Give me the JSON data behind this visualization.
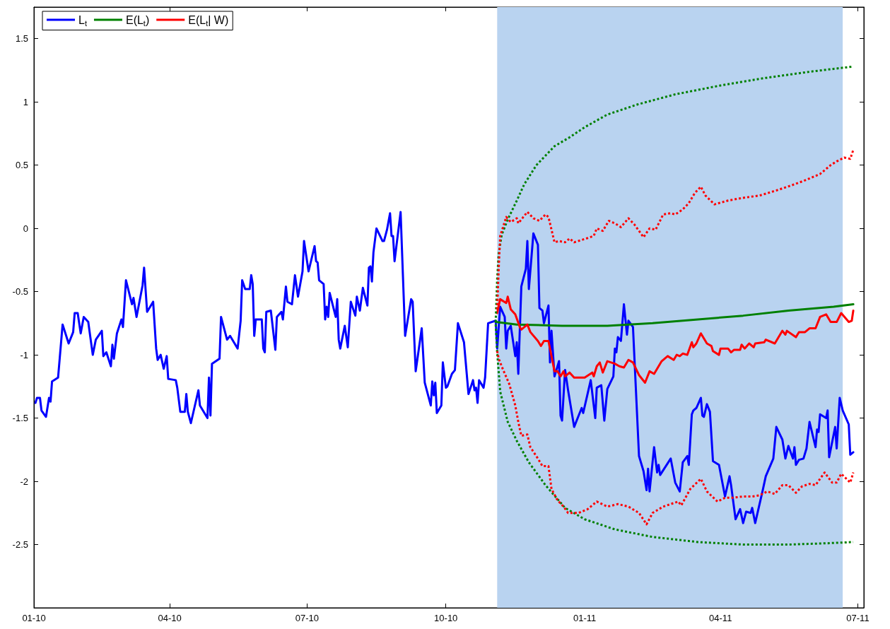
{
  "chart_data": {
    "type": "line",
    "xlim": [
      "2010-01-01",
      "2011-07-05"
    ],
    "ylim": [
      -3,
      1.75
    ],
    "xticks": [
      {
        "value": "2010-01-01",
        "label": "01-10"
      },
      {
        "value": "2010-04-01",
        "label": "04-10"
      },
      {
        "value": "2010-07-01",
        "label": "07-10"
      },
      {
        "value": "2010-10-01",
        "label": "10-10"
      },
      {
        "value": "2011-01-01",
        "label": "01-11"
      },
      {
        "value": "2011-04-01",
        "label": "04-11"
      },
      {
        "value": "2011-07-01",
        "label": "07-11"
      }
    ],
    "yticks": [
      -2.5,
      -2,
      -1.5,
      -1,
      -0.5,
      0,
      0.5,
      1,
      1.5
    ],
    "grid": false,
    "legend": "top left",
    "marker": "none",
    "line_style": "solid",
    "bands": [
      {
        "axis": "x",
        "from": "2010-11-04",
        "to": "2011-06-21",
        "color": "#b9d3f0"
      }
    ],
    "series": [
      {
        "name": "L$_{t}$",
        "color": "#0000ff",
        "x": [
          "2010-01-02",
          "2010-01-03",
          "2010-01-05",
          "2010-01-06",
          "2010-01-09",
          "2010-01-11",
          "2010-01-12",
          "2010-01-13",
          "2010-01-17",
          "2010-01-20",
          "2010-01-24",
          "2010-01-27",
          "2010-01-28",
          "2010-01-30",
          "2010-02-01",
          "2010-02-03",
          "2010-02-06",
          "2010-02-09",
          "2010-02-11",
          "2010-02-15",
          "2010-02-16",
          "2010-02-18",
          "2010-02-21",
          "2010-02-22",
          "2010-02-23",
          "2010-02-25",
          "2010-02-28",
          "2010-03-01",
          "2010-03-03",
          "2010-03-07",
          "2010-03-08",
          "2010-03-10",
          "2010-03-14",
          "2010-03-15",
          "2010-03-17",
          "2010-03-21",
          "2010-03-23",
          "2010-03-24",
          "2010-03-26",
          "2010-03-28",
          "2010-03-30",
          "2010-03-31",
          "2010-04-05",
          "2010-04-06",
          "2010-04-08",
          "2010-04-11",
          "2010-04-12",
          "2010-04-13",
          "2010-04-15",
          "2010-04-20",
          "2010-04-21",
          "2010-04-26",
          "2010-04-27",
          "2010-04-28",
          "2010-04-29",
          "2010-05-04",
          "2010-05-05",
          "2010-05-09",
          "2010-05-11",
          "2010-05-16",
          "2010-05-18",
          "2010-05-19",
          "2010-05-21",
          "2010-05-24",
          "2010-05-25",
          "2010-05-26",
          "2010-05-27",
          "2010-05-28",
          "2010-06-01",
          "2010-06-02",
          "2010-06-03",
          "2010-06-04",
          "2010-06-07",
          "2010-06-10",
          "2010-06-11",
          "2010-06-14",
          "2010-06-15",
          "2010-06-17",
          "2010-06-18",
          "2010-06-21",
          "2010-06-23",
          "2010-06-25",
          "2010-06-28",
          "2010-06-29",
          "2010-07-02",
          "2010-07-06",
          "2010-07-07",
          "2010-07-08",
          "2010-07-09",
          "2010-07-12",
          "2010-07-13",
          "2010-07-14",
          "2010-07-15",
          "2010-07-16",
          "2010-07-20",
          "2010-07-21",
          "2010-07-22",
          "2010-07-23",
          "2010-07-26",
          "2010-07-28",
          "2010-07-30",
          "2010-08-02",
          "2010-08-03",
          "2010-08-05",
          "2010-08-07",
          "2010-08-10",
          "2010-08-11",
          "2010-08-12",
          "2010-08-13",
          "2010-08-14",
          "2010-08-16",
          "2010-08-20",
          "2010-08-21",
          "2010-08-23",
          "2010-08-25",
          "2010-08-26",
          "2010-08-27",
          "2010-08-28",
          "2010-09-01",
          "2010-09-04",
          "2010-09-08",
          "2010-09-09",
          "2010-09-11",
          "2010-09-15",
          "2010-09-17",
          "2010-09-21",
          "2010-09-22",
          "2010-09-23",
          "2010-09-24",
          "2010-09-25",
          "2010-09-28",
          "2010-09-29",
          "2010-10-01",
          "2010-10-02",
          "2010-10-05",
          "2010-10-07",
          "2010-10-09",
          "2010-10-13",
          "2010-10-16",
          "2010-10-19",
          "2010-10-20",
          "2010-10-21",
          "2010-10-22",
          "2010-10-23",
          "2010-10-26",
          "2010-10-27",
          "2010-10-29",
          "2010-11-03",
          "2010-11-04",
          "2010-11-06",
          "2010-11-09",
          "2010-11-10",
          "2010-11-11",
          "2010-11-13",
          "2010-11-16",
          "2010-11-17",
          "2010-11-18",
          "2010-11-20",
          "2010-11-23",
          "2010-11-24",
          "2010-11-25",
          "2010-11-28",
          "2010-12-01",
          "2010-12-02",
          "2010-12-04",
          "2010-12-05",
          "2010-12-08",
          "2010-12-09",
          "2010-12-10",
          "2010-12-12",
          "2010-12-15",
          "2010-12-16",
          "2010-12-17",
          "2010-12-19",
          "2010-12-21",
          "2010-12-25",
          "2010-12-30",
          "2010-12-31",
          "2011-01-05",
          "2011-01-08",
          "2011-01-09",
          "2011-01-12",
          "2011-01-14",
          "2011-01-16",
          "2011-01-20",
          "2011-01-21",
          "2011-01-22",
          "2011-01-23",
          "2011-01-25",
          "2011-01-27",
          "2011-01-29",
          "2011-01-30",
          "2011-02-02",
          "2011-02-06",
          "2011-02-09",
          "2011-02-11",
          "2011-02-12",
          "2011-02-13",
          "2011-02-16",
          "2011-02-18",
          "2011-02-19",
          "2011-02-20",
          "2011-02-27",
          "2011-03-02",
          "2011-03-05",
          "2011-03-07",
          "2011-03-10",
          "2011-03-11",
          "2011-03-13",
          "2011-03-14",
          "2011-03-16",
          "2011-03-19",
          "2011-03-20",
          "2011-03-21",
          "2011-03-23",
          "2011-03-25",
          "2011-03-27",
          "2011-03-31",
          "2011-04-04",
          "2011-04-07",
          "2011-04-08",
          "2011-04-11",
          "2011-04-14",
          "2011-04-16",
          "2011-04-18",
          "2011-04-21",
          "2011-04-22",
          "2011-04-24",
          "2011-04-29",
          "2011-05-01",
          "2011-05-06",
          "2011-05-08",
          "2011-05-12",
          "2011-05-14",
          "2011-05-16",
          "2011-05-19",
          "2011-05-20",
          "2011-05-21",
          "2011-05-23",
          "2011-05-26",
          "2011-05-28",
          "2011-05-30",
          "2011-06-03",
          "2011-06-04",
          "2011-06-05",
          "2011-06-06",
          "2011-06-10",
          "2011-06-11",
          "2011-06-12",
          "2011-06-16",
          "2011-06-17",
          "2011-06-19",
          "2011-06-21",
          "2011-06-25",
          "2011-06-26",
          "2011-06-28"
        ],
        "values": [
          -1.38,
          -1.34,
          -1.34,
          -1.44,
          -1.49,
          -1.34,
          -1.37,
          -1.21,
          -1.18,
          -0.76,
          -0.91,
          -0.82,
          -0.67,
          -0.67,
          -0.83,
          -0.7,
          -0.74,
          -1.0,
          -0.88,
          -0.81,
          -1.01,
          -0.98,
          -1.09,
          -0.92,
          -1.03,
          -0.83,
          -0.72,
          -0.78,
          -0.41,
          -0.6,
          -0.55,
          -0.7,
          -0.45,
          -0.31,
          -0.66,
          -0.58,
          -0.95,
          -1.04,
          -1.0,
          -1.11,
          -1.01,
          -1.19,
          -1.2,
          -1.26,
          -1.45,
          -1.45,
          -1.31,
          -1.45,
          -1.54,
          -1.28,
          -1.4,
          -1.5,
          -1.18,
          -1.48,
          -1.07,
          -1.03,
          -0.7,
          -0.88,
          -0.85,
          -0.95,
          -0.73,
          -0.41,
          -0.48,
          -0.48,
          -0.37,
          -0.44,
          -0.85,
          -0.72,
          -0.72,
          -0.95,
          -0.98,
          -0.66,
          -0.65,
          -0.96,
          -0.7,
          -0.66,
          -0.72,
          -0.46,
          -0.58,
          -0.6,
          -0.37,
          -0.54,
          -0.34,
          -0.1,
          -0.34,
          -0.14,
          -0.26,
          -0.27,
          -0.41,
          -0.44,
          -0.72,
          -0.62,
          -0.7,
          -0.51,
          -0.7,
          -0.56,
          -0.88,
          -0.95,
          -0.77,
          -0.94,
          -0.58,
          -0.69,
          -0.54,
          -0.65,
          -0.47,
          -0.61,
          -0.31,
          -0.3,
          -0.42,
          -0.19,
          0.0,
          -0.1,
          -0.1,
          -0.01,
          0.12,
          -0.06,
          -0.06,
          -0.26,
          0.13,
          -0.85,
          -0.56,
          -0.58,
          -1.13,
          -0.79,
          -1.22,
          -1.4,
          -1.21,
          -1.32,
          -1.22,
          -1.46,
          -1.4,
          -1.06,
          -1.26,
          -1.25,
          -1.15,
          -1.12,
          -0.75,
          -0.9,
          -1.31,
          -1.2,
          -1.28,
          -1.26,
          -1.38,
          -1.2,
          -1.26,
          -1.18,
          -0.75,
          -0.73,
          -0.95,
          -0.62,
          -0.7,
          -0.95,
          -0.81,
          -0.77,
          -1.01,
          -0.9,
          -1.15,
          -0.46,
          -0.32,
          -0.1,
          -0.48,
          -0.04,
          -0.13,
          -0.63,
          -0.65,
          -0.75,
          -0.61,
          -1.06,
          -0.81,
          -1.17,
          -1.05,
          -1.48,
          -1.52,
          -1.12,
          -1.28,
          -1.57,
          -1.42,
          -1.46,
          -1.2,
          -1.5,
          -1.26,
          -1.24,
          -1.52,
          -1.27,
          -1.17,
          -0.95,
          -0.98,
          -0.86,
          -0.89,
          -0.6,
          -0.84,
          -0.73,
          -0.78,
          -1.8,
          -1.92,
          -2.07,
          -1.9,
          -2.08,
          -1.73,
          -1.93,
          -1.87,
          -1.95,
          -1.82,
          -2.01,
          -2.08,
          -1.85,
          -1.8,
          -1.87,
          -1.47,
          -1.44,
          -1.42,
          -1.34,
          -1.48,
          -1.49,
          -1.39,
          -1.45,
          -1.84,
          -1.87,
          -2.12,
          -1.96,
          -2.03,
          -2.3,
          -2.22,
          -2.33,
          -2.24,
          -2.25,
          -2.21,
          -2.33,
          -2.07,
          -1.96,
          -1.82,
          -1.57,
          -1.67,
          -1.82,
          -1.72,
          -1.82,
          -1.73,
          -1.87,
          -1.83,
          -1.82,
          -1.74,
          -1.53,
          -1.73,
          -1.59,
          -1.61,
          -1.47,
          -1.5,
          -1.44,
          -1.81,
          -1.57,
          -1.74,
          -1.34,
          -1.44,
          -1.55,
          -1.79,
          -1.77
        ]
      },
      {
        "name": "E(L$_{t}$)",
        "color": "#008000",
        "x": [
          "2010-11-03",
          "2010-11-17",
          "2010-12-17",
          "2011-01-16",
          "2011-02-15",
          "2011-03-17",
          "2011-04-16",
          "2011-05-16",
          "2011-06-15",
          "2011-06-28"
        ],
        "values": [
          -0.74,
          -0.76,
          -0.77,
          -0.77,
          -0.75,
          -0.72,
          -0.69,
          -0.65,
          -0.62,
          -0.6
        ]
      },
      {
        "name": "E(L$_{t}$| W)",
        "color": "#ff0000",
        "x": [
          "2010-11-04",
          "2010-11-06",
          "2010-11-10",
          "2010-11-11",
          "2010-11-13",
          "2010-11-16",
          "2010-11-19",
          "2010-11-20",
          "2010-11-24",
          "2010-11-26",
          "2010-12-01",
          "2010-12-03",
          "2010-12-05",
          "2010-12-08",
          "2010-12-12",
          "2010-12-14",
          "2010-12-16",
          "2010-12-18",
          "2010-12-19",
          "2010-12-22",
          "2010-12-25",
          "2011-01-01",
          "2011-01-06",
          "2011-01-07",
          "2011-01-09",
          "2011-01-11",
          "2011-01-13",
          "2011-01-16",
          "2011-01-21",
          "2011-01-24",
          "2011-01-27",
          "2011-01-30",
          "2011-02-02",
          "2011-02-06",
          "2011-02-10",
          "2011-02-13",
          "2011-02-16",
          "2011-02-21",
          "2011-02-25",
          "2011-03-01",
          "2011-03-03",
          "2011-03-05",
          "2011-03-07",
          "2011-03-10",
          "2011-03-13",
          "2011-03-14",
          "2011-03-16",
          "2011-03-19",
          "2011-03-23",
          "2011-03-26",
          "2011-03-27",
          "2011-03-31",
          "2011-04-01",
          "2011-04-06",
          "2011-04-08",
          "2011-04-10",
          "2011-04-14",
          "2011-04-15",
          "2011-04-17",
          "2011-04-20",
          "2011-04-23",
          "2011-04-24",
          "2011-04-30",
          "2011-05-01",
          "2011-05-07",
          "2011-05-12",
          "2011-05-14",
          "2011-05-15",
          "2011-05-21",
          "2011-05-23",
          "2011-05-27",
          "2011-05-30",
          "2011-06-03",
          "2011-06-06",
          "2011-06-10",
          "2011-06-13",
          "2011-06-17",
          "2011-06-20",
          "2011-06-25",
          "2011-06-27",
          "2011-06-28"
        ],
        "values": [
          -0.67,
          -0.56,
          -0.59,
          -0.54,
          -0.64,
          -0.68,
          -0.78,
          -0.8,
          -0.76,
          -0.82,
          -0.89,
          -0.93,
          -0.89,
          -0.89,
          -1.13,
          -1.13,
          -1.17,
          -1.13,
          -1.17,
          -1.14,
          -1.18,
          -1.18,
          -1.14,
          -1.17,
          -1.09,
          -1.06,
          -1.14,
          -1.05,
          -1.07,
          -1.09,
          -1.1,
          -1.04,
          -1.06,
          -1.16,
          -1.22,
          -1.13,
          -1.15,
          -1.05,
          -1.01,
          -1.04,
          -1.0,
          -1.01,
          -0.99,
          -1.0,
          -0.9,
          -0.94,
          -0.91,
          -0.83,
          -0.91,
          -0.93,
          -0.97,
          -1.0,
          -0.95,
          -0.95,
          -0.98,
          -0.96,
          -0.96,
          -0.92,
          -0.95,
          -0.91,
          -0.94,
          -0.91,
          -0.9,
          -0.88,
          -0.91,
          -0.81,
          -0.84,
          -0.81,
          -0.86,
          -0.82,
          -0.82,
          -0.79,
          -0.79,
          -0.7,
          -0.68,
          -0.74,
          -0.74,
          -0.67,
          -0.74,
          -0.73,
          -0.65
        ]
      },
      {
        "color": "#008000",
        "line_style": "dotted",
        "x": [
          "2010-11-03",
          "2010-11-04",
          "2010-11-05",
          "2010-11-07",
          "2010-11-11",
          "2010-11-17",
          "2010-11-22",
          "2010-11-30",
          "2010-12-12",
          "2010-12-22",
          "2011-01-01",
          "2011-01-16",
          "2011-02-05",
          "2011-03-02",
          "2011-04-01",
          "2011-05-01",
          "2011-05-31",
          "2011-06-28"
        ],
        "values": [
          -0.74,
          -0.4,
          -0.2,
          -0.05,
          0.07,
          0.22,
          0.35,
          0.5,
          0.65,
          0.72,
          0.8,
          0.9,
          0.98,
          1.06,
          1.13,
          1.19,
          1.24,
          1.28
        ]
      },
      {
        "color": "#008000",
        "line_style": "dotted",
        "x": [
          "2010-11-03",
          "2010-11-04",
          "2010-11-06",
          "2010-11-11",
          "2010-11-17",
          "2010-11-25",
          "2010-12-06",
          "2010-12-19",
          "2011-01-01",
          "2011-01-21",
          "2011-02-15",
          "2011-03-17",
          "2011-04-16",
          "2011-05-16",
          "2011-06-10",
          "2011-06-28"
        ],
        "values": [
          -0.76,
          -0.98,
          -1.29,
          -1.53,
          -1.68,
          -1.85,
          -2.03,
          -2.21,
          -2.3,
          -2.38,
          -2.44,
          -2.48,
          -2.5,
          -2.5,
          -2.49,
          -2.48
        ]
      },
      {
        "color": "#ff0000",
        "line_style": "dotted",
        "x": [
          "2010-11-04",
          "2010-11-05",
          "2010-11-06",
          "2010-11-10",
          "2010-11-13",
          "2010-11-17",
          "2010-11-18",
          "2010-11-20",
          "2010-11-24",
          "2010-11-28",
          "2010-12-02",
          "2010-12-06",
          "2010-12-08",
          "2010-12-12",
          "2010-12-15",
          "2010-12-19",
          "2010-12-22",
          "2010-12-25",
          "2011-01-02",
          "2011-01-07",
          "2011-01-09",
          "2011-01-13",
          "2011-01-17",
          "2011-01-21",
          "2011-01-25",
          "2011-01-30",
          "2011-02-03",
          "2011-02-09",
          "2011-02-13",
          "2011-02-17",
          "2011-02-22",
          "2011-02-27",
          "2011-03-02",
          "2011-03-07",
          "2011-03-11",
          "2011-03-15",
          "2011-03-19",
          "2011-03-22",
          "2011-03-28",
          "2011-04-06",
          "2011-04-15",
          "2011-04-27",
          "2011-05-08",
          "2011-05-18",
          "2011-05-27",
          "2011-06-06",
          "2011-06-13",
          "2011-06-17",
          "2011-06-22",
          "2011-06-26",
          "2011-06-28"
        ],
        "values": [
          -0.64,
          -0.32,
          -0.06,
          0.09,
          0.05,
          0.08,
          0.04,
          0.07,
          0.13,
          0.08,
          0.06,
          0.11,
          0.09,
          -0.11,
          -0.1,
          -0.11,
          -0.08,
          -0.11,
          -0.08,
          -0.06,
          0.0,
          -0.02,
          0.06,
          0.04,
          0.01,
          0.08,
          0.03,
          -0.07,
          0.0,
          -0.01,
          0.11,
          0.12,
          0.11,
          0.15,
          0.2,
          0.28,
          0.33,
          0.26,
          0.19,
          0.22,
          0.24,
          0.26,
          0.3,
          0.34,
          0.38,
          0.43,
          0.5,
          0.53,
          0.56,
          0.55,
          0.62
        ]
      },
      {
        "color": "#ff0000",
        "line_style": "dotted",
        "x": [
          "2010-11-04",
          "2010-11-05",
          "2010-11-08",
          "2010-11-12",
          "2010-11-16",
          "2010-11-18",
          "2010-11-20",
          "2010-11-24",
          "2010-11-26",
          "2010-12-01",
          "2010-12-04",
          "2010-12-08",
          "2010-12-10",
          "2010-12-14",
          "2010-12-18",
          "2010-12-21",
          "2010-12-28",
          "2011-01-03",
          "2011-01-09",
          "2011-01-16",
          "2011-01-23",
          "2011-01-30",
          "2011-02-06",
          "2011-02-11",
          "2011-02-15",
          "2011-02-22",
          "2011-03-04",
          "2011-03-06",
          "2011-03-12",
          "2011-03-19",
          "2011-03-23",
          "2011-03-30",
          "2011-04-04",
          "2011-04-09",
          "2011-04-16",
          "2011-04-22",
          "2011-04-27",
          "2011-05-02",
          "2011-05-07",
          "2011-05-12",
          "2011-05-16",
          "2011-05-21",
          "2011-05-25",
          "2011-05-30",
          "2011-06-03",
          "2011-06-09",
          "2011-06-14",
          "2011-06-17",
          "2011-06-20",
          "2011-06-26",
          "2011-06-28"
        ],
        "values": [
          -0.97,
          -1.03,
          -1.12,
          -1.23,
          -1.4,
          -1.53,
          -1.64,
          -1.63,
          -1.73,
          -1.82,
          -1.88,
          -1.88,
          -2.06,
          -2.15,
          -2.2,
          -2.25,
          -2.25,
          -2.22,
          -2.16,
          -2.2,
          -2.18,
          -2.2,
          -2.25,
          -2.34,
          -2.25,
          -2.2,
          -2.16,
          -2.19,
          -2.06,
          -1.98,
          -2.08,
          -2.16,
          -2.13,
          -2.13,
          -2.12,
          -2.12,
          -2.11,
          -2.08,
          -2.1,
          -2.03,
          -2.03,
          -2.09,
          -2.04,
          -2.02,
          -2.03,
          -1.93,
          -2.01,
          -2.01,
          -1.94,
          -2.01,
          -1.93
        ]
      }
    ]
  }
}
